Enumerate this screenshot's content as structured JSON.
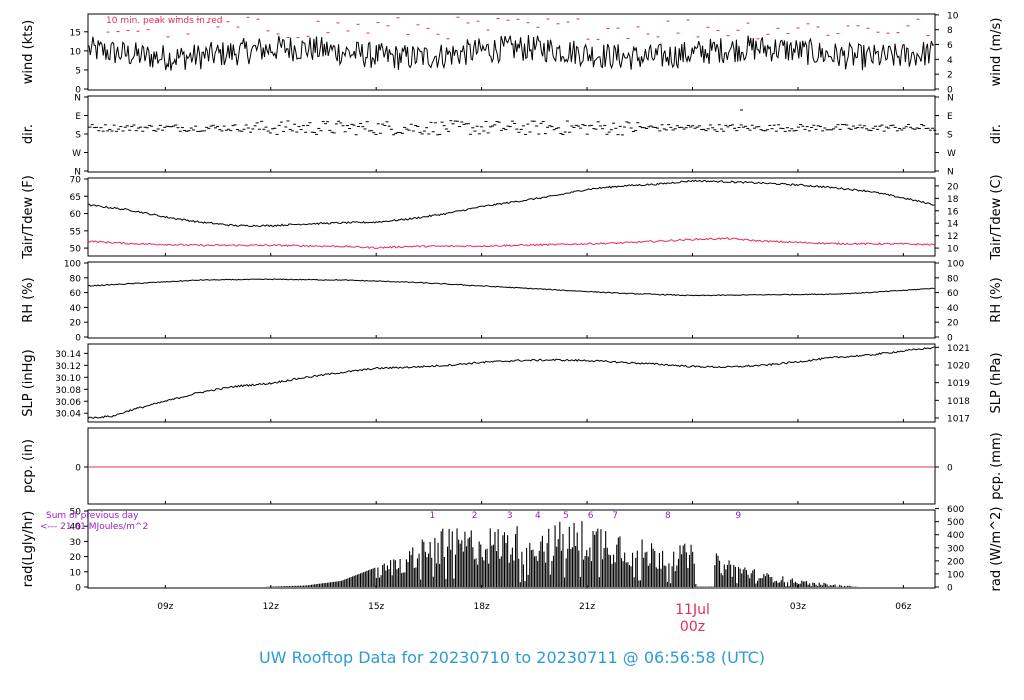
{
  "title": "UW Rooftop Data for 20230710  to  20230711 @ 06:56:58  (UTC)",
  "colors": {
    "title": "#2c9bd6",
    "peak": "#e0305a",
    "dew": "#e0305a",
    "rad_note": "#9a20c8",
    "trace": "#000000",
    "date": "#e0305a"
  },
  "x_axis": {
    "tick_labels": [
      "09z",
      "12z",
      "15z",
      "18z",
      "21z",
      "03z",
      "06z"
    ],
    "tick_hours": [
      9,
      12,
      15,
      18,
      21,
      27,
      30
    ],
    "date_label": "11Jul",
    "date_sub": "00z",
    "date_hour": 24
  },
  "chart_data": [
    {
      "type": "line",
      "name": "wind",
      "ylabel_left": "wind (kts)",
      "ylabel_right": "wind (m/s)",
      "left_ticks": [
        "0",
        "5",
        "10",
        "15"
      ],
      "right_ticks": [
        "0",
        "2",
        "4",
        "6",
        "8",
        "10"
      ],
      "ylim": [
        0,
        19.4
      ],
      "annotation": "10 min. peak winds in red",
      "x_range_hours": [
        6.8,
        30.9
      ],
      "mean": 9.5,
      "peak_range": [
        13,
        19
      ]
    },
    {
      "type": "scatter",
      "name": "dir",
      "ylabel_left": "dir.",
      "ylabel_right": "dir.",
      "left_ticks": [
        "N",
        "W",
        "S",
        "E",
        "N"
      ],
      "right_ticks": [
        "N",
        "W",
        "S",
        "E",
        "N"
      ],
      "ylim": [
        0,
        360
      ],
      "typical_direction_deg": 210
    },
    {
      "type": "line",
      "name": "temp",
      "ylabel_left": "Tair/Tdew (F)",
      "ylabel_right": "Tair/Tdew (C)",
      "left_ticks": [
        "50",
        "55",
        "60",
        "65",
        "70"
      ],
      "right_ticks": [
        "10",
        "12",
        "14",
        "16",
        "18",
        "20"
      ],
      "ylim": [
        48,
        70
      ],
      "series": [
        {
          "name": "Tair",
          "x": [
            6.8,
            8,
            9,
            10,
            11,
            12,
            13,
            14,
            15,
            16,
            17,
            18,
            19,
            20,
            21,
            22,
            23,
            24,
            25,
            26,
            27,
            28,
            29,
            30,
            30.9
          ],
          "y": [
            62.5,
            61,
            59,
            57.5,
            56.5,
            56.5,
            57,
            57.3,
            57.5,
            58.5,
            60,
            62,
            63.5,
            65,
            67,
            68,
            68.5,
            69.5,
            69.2,
            68.8,
            68.3,
            67.5,
            66.5,
            64.5,
            62.5
          ]
        },
        {
          "name": "Tdew",
          "x": [
            6.8,
            8,
            10,
            12,
            14,
            15,
            16,
            18,
            20,
            22,
            24,
            25,
            26,
            28,
            30,
            30.9
          ],
          "y": [
            52,
            51.3,
            50.8,
            50.8,
            50.5,
            50.1,
            50.5,
            50.6,
            51,
            51.5,
            52.5,
            52.8,
            52,
            51.3,
            51.2,
            51
          ]
        }
      ]
    },
    {
      "type": "line",
      "name": "rh",
      "ylabel_left": "RH (%)",
      "ylabel_right": "RH (%)",
      "left_ticks": [
        "0",
        "20",
        "40",
        "60",
        "80",
        "100"
      ],
      "right_ticks": [
        "0",
        "20",
        "40",
        "60",
        "80",
        "100"
      ],
      "ylim": [
        0,
        100
      ],
      "x": [
        6.8,
        8,
        10,
        12,
        14,
        16,
        18,
        20,
        22,
        24,
        26,
        28,
        29,
        30,
        30.9
      ],
      "y": [
        69,
        72,
        77,
        78,
        77,
        74,
        69,
        64,
        59,
        56,
        57,
        58,
        60,
        63,
        66
      ]
    },
    {
      "type": "line",
      "name": "slp",
      "ylabel_left": "SLP (inHg)",
      "ylabel_right": "SLP (hPa)",
      "left_ticks": [
        "30.04",
        "30.06",
        "30.08",
        "30.10",
        "30.12",
        "30.14"
      ],
      "right_ticks": [
        "1017",
        "1018",
        "1019",
        "1020",
        "1021"
      ],
      "ylim": [
        30.027,
        30.154
      ],
      "x": [
        6.8,
        7.5,
        8,
        9,
        10,
        11,
        12,
        13,
        14,
        15,
        16,
        17,
        18,
        19,
        20,
        21,
        22,
        23,
        24,
        25,
        26,
        27,
        28,
        29,
        30,
        30.9
      ],
      "y": [
        30.032,
        30.035,
        30.045,
        30.06,
        30.075,
        30.085,
        30.09,
        30.1,
        30.108,
        30.115,
        30.117,
        30.12,
        30.125,
        30.128,
        30.129,
        30.128,
        30.125,
        30.122,
        30.118,
        30.117,
        30.12,
        30.126,
        30.133,
        30.137,
        30.144,
        30.15
      ]
    },
    {
      "type": "line",
      "name": "pcp",
      "ylabel_left": "pcp. (in)",
      "ylabel_right": "pcp. (mm)",
      "left_ticks": [
        "0"
      ],
      "right_ticks": [
        "0"
      ],
      "value": 0
    },
    {
      "type": "bar",
      "name": "rad",
      "ylabel_left": "rad(Lgly/hr)",
      "ylabel_right": "rad (W/m^2)",
      "left_ticks": [
        "0",
        "10",
        "20",
        "30",
        "40",
        "50"
      ],
      "right_ticks": [
        "0",
        "100",
        "200",
        "300",
        "400",
        "500",
        "600"
      ],
      "ylim": [
        0,
        50
      ],
      "note_line1": "Sum of previous day",
      "note_line2": "<--- 21.61 MJoules/m^2",
      "hour_marks": [
        "1",
        "2",
        "3",
        "4",
        "5",
        "6",
        "7",
        "8",
        "9"
      ],
      "hour_mark_x": [
        16.6,
        17.8,
        18.8,
        19.6,
        20.4,
        21.1,
        21.8,
        23.3,
        25.3
      ],
      "envelope_x": [
        11.9,
        13,
        14,
        15,
        16,
        16.6,
        17.8,
        18.8,
        19.6,
        20.4,
        21,
        21.8,
        22.5,
        23.3,
        24,
        25.3,
        26,
        27,
        28,
        28.7
      ],
      "envelope_y": [
        0.2,
        1,
        4,
        13,
        28,
        38,
        40,
        41,
        42,
        44,
        45,
        42,
        32,
        30,
        28,
        17,
        10,
        5,
        2,
        0.2
      ]
    }
  ]
}
